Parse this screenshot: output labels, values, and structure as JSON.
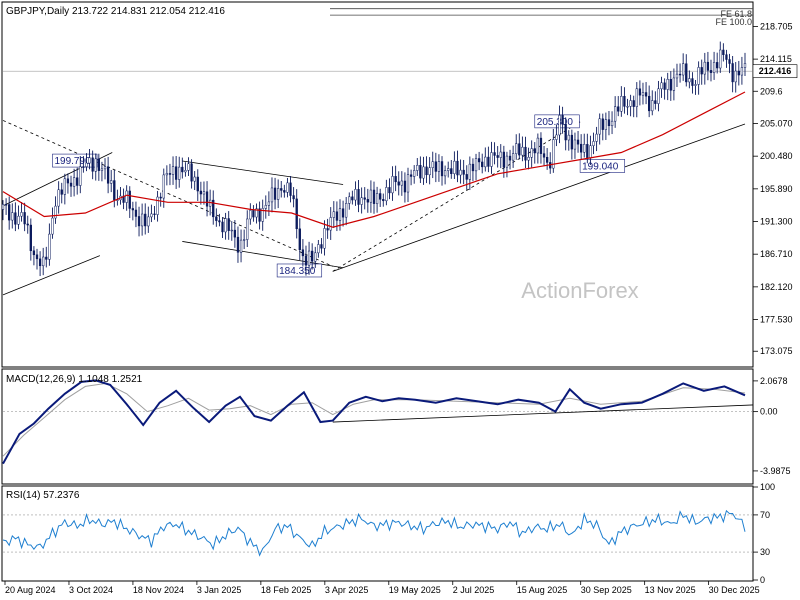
{
  "header": {
    "symbol_line": "GBPJPY,Daily  213.722 214.831 212.054 212.416",
    "fe_618": "FE 61.8",
    "fe_1000": "FE 100.0",
    "last_price": "212.416"
  },
  "watermark": "ActionForex",
  "colors": {
    "candle": "#0b1a5c",
    "ma": "#cc0000",
    "trendline": "#000000",
    "macd_line": "#0a1a7a",
    "signal_line": "#a0a0a0",
    "rsi_line": "#1e7fd0",
    "grid": "#c8c8c8",
    "label_text": "#1a237e"
  },
  "chart_data": [
    {
      "type": "candlestick",
      "title": "GBPJPY,Daily",
      "xlabel": "",
      "ylabel": "",
      "ylim": [
        171.0,
        222.0
      ],
      "y_ticks": [
        "218.705",
        "214.115",
        "209.6",
        "205.070",
        "200.480",
        "195.890",
        "191.300",
        "186.710",
        "182.120",
        "177.530",
        "173.075"
      ],
      "x_ticks": [
        "20 Aug 2024",
        "3 Oct 2024",
        "18 Nov 2024",
        "3 Jan 2025",
        "18 Feb 2025",
        "3 Apr 2025",
        "19 May 2025",
        "2 Jul 2025",
        "15 Aug 2025",
        "30 Sep 2025",
        "13 Nov 2025",
        "30 Dec 2025"
      ],
      "series": [
        {
          "name": "GBPJPY",
          "x": [
            0,
            10,
            15,
            20,
            22,
            25,
            30,
            35,
            40,
            45,
            50,
            55,
            60,
            70,
            78,
            85,
            90,
            95,
            100,
            108,
            115,
            120,
            128,
            135,
            140,
            145,
            150,
            155,
            160,
            167,
            175,
            180,
            185,
            190,
            195,
            200,
            205,
            210,
            215,
            220,
            225,
            230,
            235,
            240,
            245,
            250,
            255,
            260,
            265,
            270,
            275,
            280,
            285,
            290,
            295,
            300,
            305,
            310,
            315,
            320,
            325,
            330,
            335,
            340,
            345,
            350,
            355,
            360
          ],
          "close": [
            193.0,
            191.5,
            187.0,
            184.5,
            188.0,
            194.5,
            196.0,
            197.5,
            199.0,
            200.0,
            197.5,
            195.0,
            194.0,
            190.5,
            197.0,
            199.0,
            198.0,
            196.5,
            193.0,
            190.5,
            188.0,
            192.0,
            193.5,
            196.5,
            195.0,
            186.5,
            185.5,
            189.5,
            191.5,
            194.0,
            195.0,
            194.0,
            195.5,
            196.5,
            197.0,
            198.0,
            199.0,
            198.5,
            199.0,
            198.0,
            198.5,
            199.0,
            200.5,
            200.0,
            200.5,
            201.0,
            201.0,
            201.5,
            199.5,
            205.3,
            203.0,
            201.0,
            202.0,
            204.5,
            206.0,
            207.5,
            208.5,
            209.0,
            208.0,
            210.0,
            211.5,
            212.0,
            211.0,
            212.5,
            213.5,
            214.5,
            212.0,
            212.416
          ]
        },
        {
          "name": "MA",
          "x": [
            0,
            20,
            40,
            60,
            80,
            100,
            120,
            140,
            160,
            180,
            200,
            220,
            240,
            260,
            280,
            300,
            320,
            340,
            360
          ],
          "values": [
            195.5,
            192.0,
            192.5,
            195.0,
            194.0,
            194.0,
            193.0,
            192.5,
            190.5,
            192.0,
            194.0,
            196.0,
            198.0,
            199.0,
            200.0,
            201.0,
            203.5,
            206.5,
            209.5
          ]
        }
      ],
      "annotations": [
        "199.790",
        "184.350",
        "205.300",
        "199.040",
        "FE 61.8",
        "FE 100.0"
      ]
    },
    {
      "type": "line",
      "title": "MACD(12,26,9) 1.1048 1.2521",
      "ylim": [
        -4.8,
        2.8
      ],
      "y_ticks": [
        "2.0678",
        "0.00",
        "-3.9875"
      ],
      "series": [
        {
          "name": "MACD",
          "x": [
            0,
            8,
            15,
            22,
            30,
            38,
            45,
            52,
            60,
            68,
            76,
            84,
            92,
            100,
            108,
            115,
            122,
            130,
            138,
            146,
            154,
            160,
            168,
            176,
            184,
            192,
            200,
            210,
            220,
            230,
            240,
            250,
            260,
            268,
            275,
            282,
            290,
            300,
            310,
            320,
            330,
            340,
            350,
            360
          ],
          "values": [
            -3.5,
            -1.5,
            -0.8,
            0.2,
            1.2,
            2.0,
            2.1,
            1.8,
            0.5,
            -0.9,
            0.6,
            1.4,
            0.3,
            -0.7,
            0.4,
            1.0,
            -0.3,
            -0.6,
            0.4,
            1.3,
            -0.7,
            -0.6,
            0.6,
            1.0,
            0.7,
            0.9,
            0.8,
            0.6,
            0.9,
            0.7,
            0.5,
            0.8,
            0.6,
            0.0,
            1.5,
            0.6,
            0.2,
            0.5,
            0.6,
            1.2,
            1.9,
            1.4,
            1.7,
            1.1
          ]
        },
        {
          "name": "Signal",
          "x": [
            0,
            10,
            20,
            30,
            40,
            50,
            60,
            70,
            80,
            90,
            100,
            110,
            120,
            130,
            140,
            150,
            160,
            170,
            180,
            190,
            200,
            220,
            240,
            260,
            275,
            290,
            310,
            330,
            345,
            360
          ],
          "values": [
            -3.0,
            -1.6,
            -0.4,
            0.8,
            1.7,
            1.9,
            1.2,
            0.0,
            0.4,
            0.9,
            0.1,
            0.2,
            0.4,
            -0.2,
            0.5,
            0.6,
            -0.2,
            0.5,
            0.8,
            0.8,
            0.8,
            0.7,
            0.6,
            0.5,
            0.9,
            0.5,
            0.7,
            1.6,
            1.5,
            1.25
          ]
        }
      ]
    },
    {
      "type": "line",
      "title": "RSI(14) 57.2376",
      "ylim": [
        0,
        100
      ],
      "y_ticks": [
        "100",
        "70",
        "30",
        "0"
      ],
      "series": [
        {
          "name": "RSI",
          "x": [
            0,
            6,
            12,
            18,
            24,
            30,
            36,
            42,
            48,
            54,
            60,
            66,
            72,
            78,
            84,
            90,
            96,
            102,
            108,
            114,
            120,
            126,
            132,
            138,
            144,
            150,
            156,
            162,
            168,
            174,
            180,
            186,
            192,
            198,
            204,
            210,
            216,
            222,
            228,
            234,
            240,
            246,
            252,
            258,
            264,
            270,
            276,
            282,
            288,
            294,
            300,
            306,
            312,
            318,
            324,
            330,
            336,
            342,
            348,
            354,
            360
          ],
          "values": [
            40,
            45,
            38,
            35,
            50,
            62,
            58,
            65,
            60,
            63,
            55,
            48,
            42,
            58,
            60,
            52,
            46,
            38,
            48,
            56,
            40,
            30,
            55,
            58,
            45,
            36,
            52,
            57,
            62,
            66,
            58,
            60,
            62,
            58,
            55,
            61,
            63,
            57,
            60,
            58,
            55,
            62,
            50,
            57,
            55,
            60,
            48,
            65,
            59,
            38,
            52,
            58,
            62,
            65,
            60,
            70,
            62,
            66,
            68,
            72,
            57.2
          ]
        }
      ]
    }
  ]
}
